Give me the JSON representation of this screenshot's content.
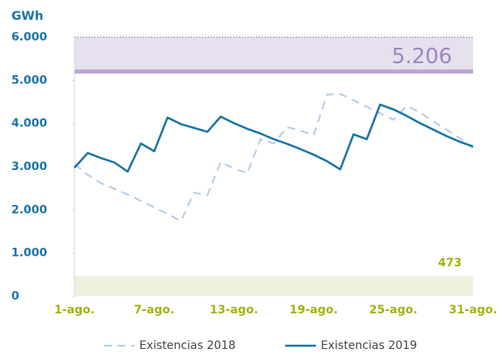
{
  "chart_data": {
    "type": "line",
    "y_label": "GWh",
    "categories": [
      "1-ago.",
      null,
      null,
      null,
      null,
      null,
      "7-ago.",
      null,
      null,
      null,
      null,
      null,
      "13-ago.",
      null,
      null,
      null,
      null,
      null,
      "19-ago.",
      null,
      null,
      null,
      null,
      null,
      "25-ago.",
      null,
      null,
      null,
      null,
      null,
      "31-ago."
    ],
    "series": [
      {
        "name": "Existencias 2018",
        "color": "#b8cfe6",
        "dashed": true,
        "values": [
          3060,
          2810,
          2620,
          2490,
          2360,
          2210,
          2060,
          1910,
          1740,
          2400,
          2340,
          3110,
          2960,
          2850,
          3640,
          3540,
          3920,
          3840,
          3730,
          4670,
          4690,
          4540,
          4390,
          4240,
          4090,
          4410,
          4260,
          4050,
          3860,
          3660,
          3430
        ]
      },
      {
        "name": "Existencias 2019",
        "color": "#1b75a6",
        "dashed": false,
        "values": [
          2980,
          3320,
          3200,
          3100,
          2890,
          3540,
          3360,
          4140,
          3990,
          3900,
          3810,
          4160,
          4010,
          3880,
          3770,
          3640,
          3530,
          3410,
          3280,
          3130,
          2940,
          3750,
          3640,
          4440,
          4330,
          4180,
          4010,
          3860,
          3710,
          3580,
          3470
        ]
      }
    ],
    "ylim": [
      0,
      6000
    ],
    "yticks": [
      0,
      {
        "value": 1000,
        "label": "1.000"
      },
      {
        "value": 2000,
        "label": "2.000"
      },
      {
        "value": 3000,
        "label": "3.000"
      },
      {
        "value": 4000,
        "label": "4.000"
      },
      {
        "value": 5000,
        "label": "5.000"
      },
      {
        "value": 6000,
        "label": "6.000"
      }
    ],
    "reference_bands": [
      {
        "value": 5206,
        "label": "5.206",
        "side": "above",
        "color": "#e6e0ef",
        "line_color": "#b9a6d3",
        "label_color": "#9c86bf"
      },
      {
        "value": 473,
        "label": "473",
        "side": "below",
        "color": "#eef1dc",
        "label_color": "#a5b20a"
      }
    ],
    "legend": "bottom"
  }
}
